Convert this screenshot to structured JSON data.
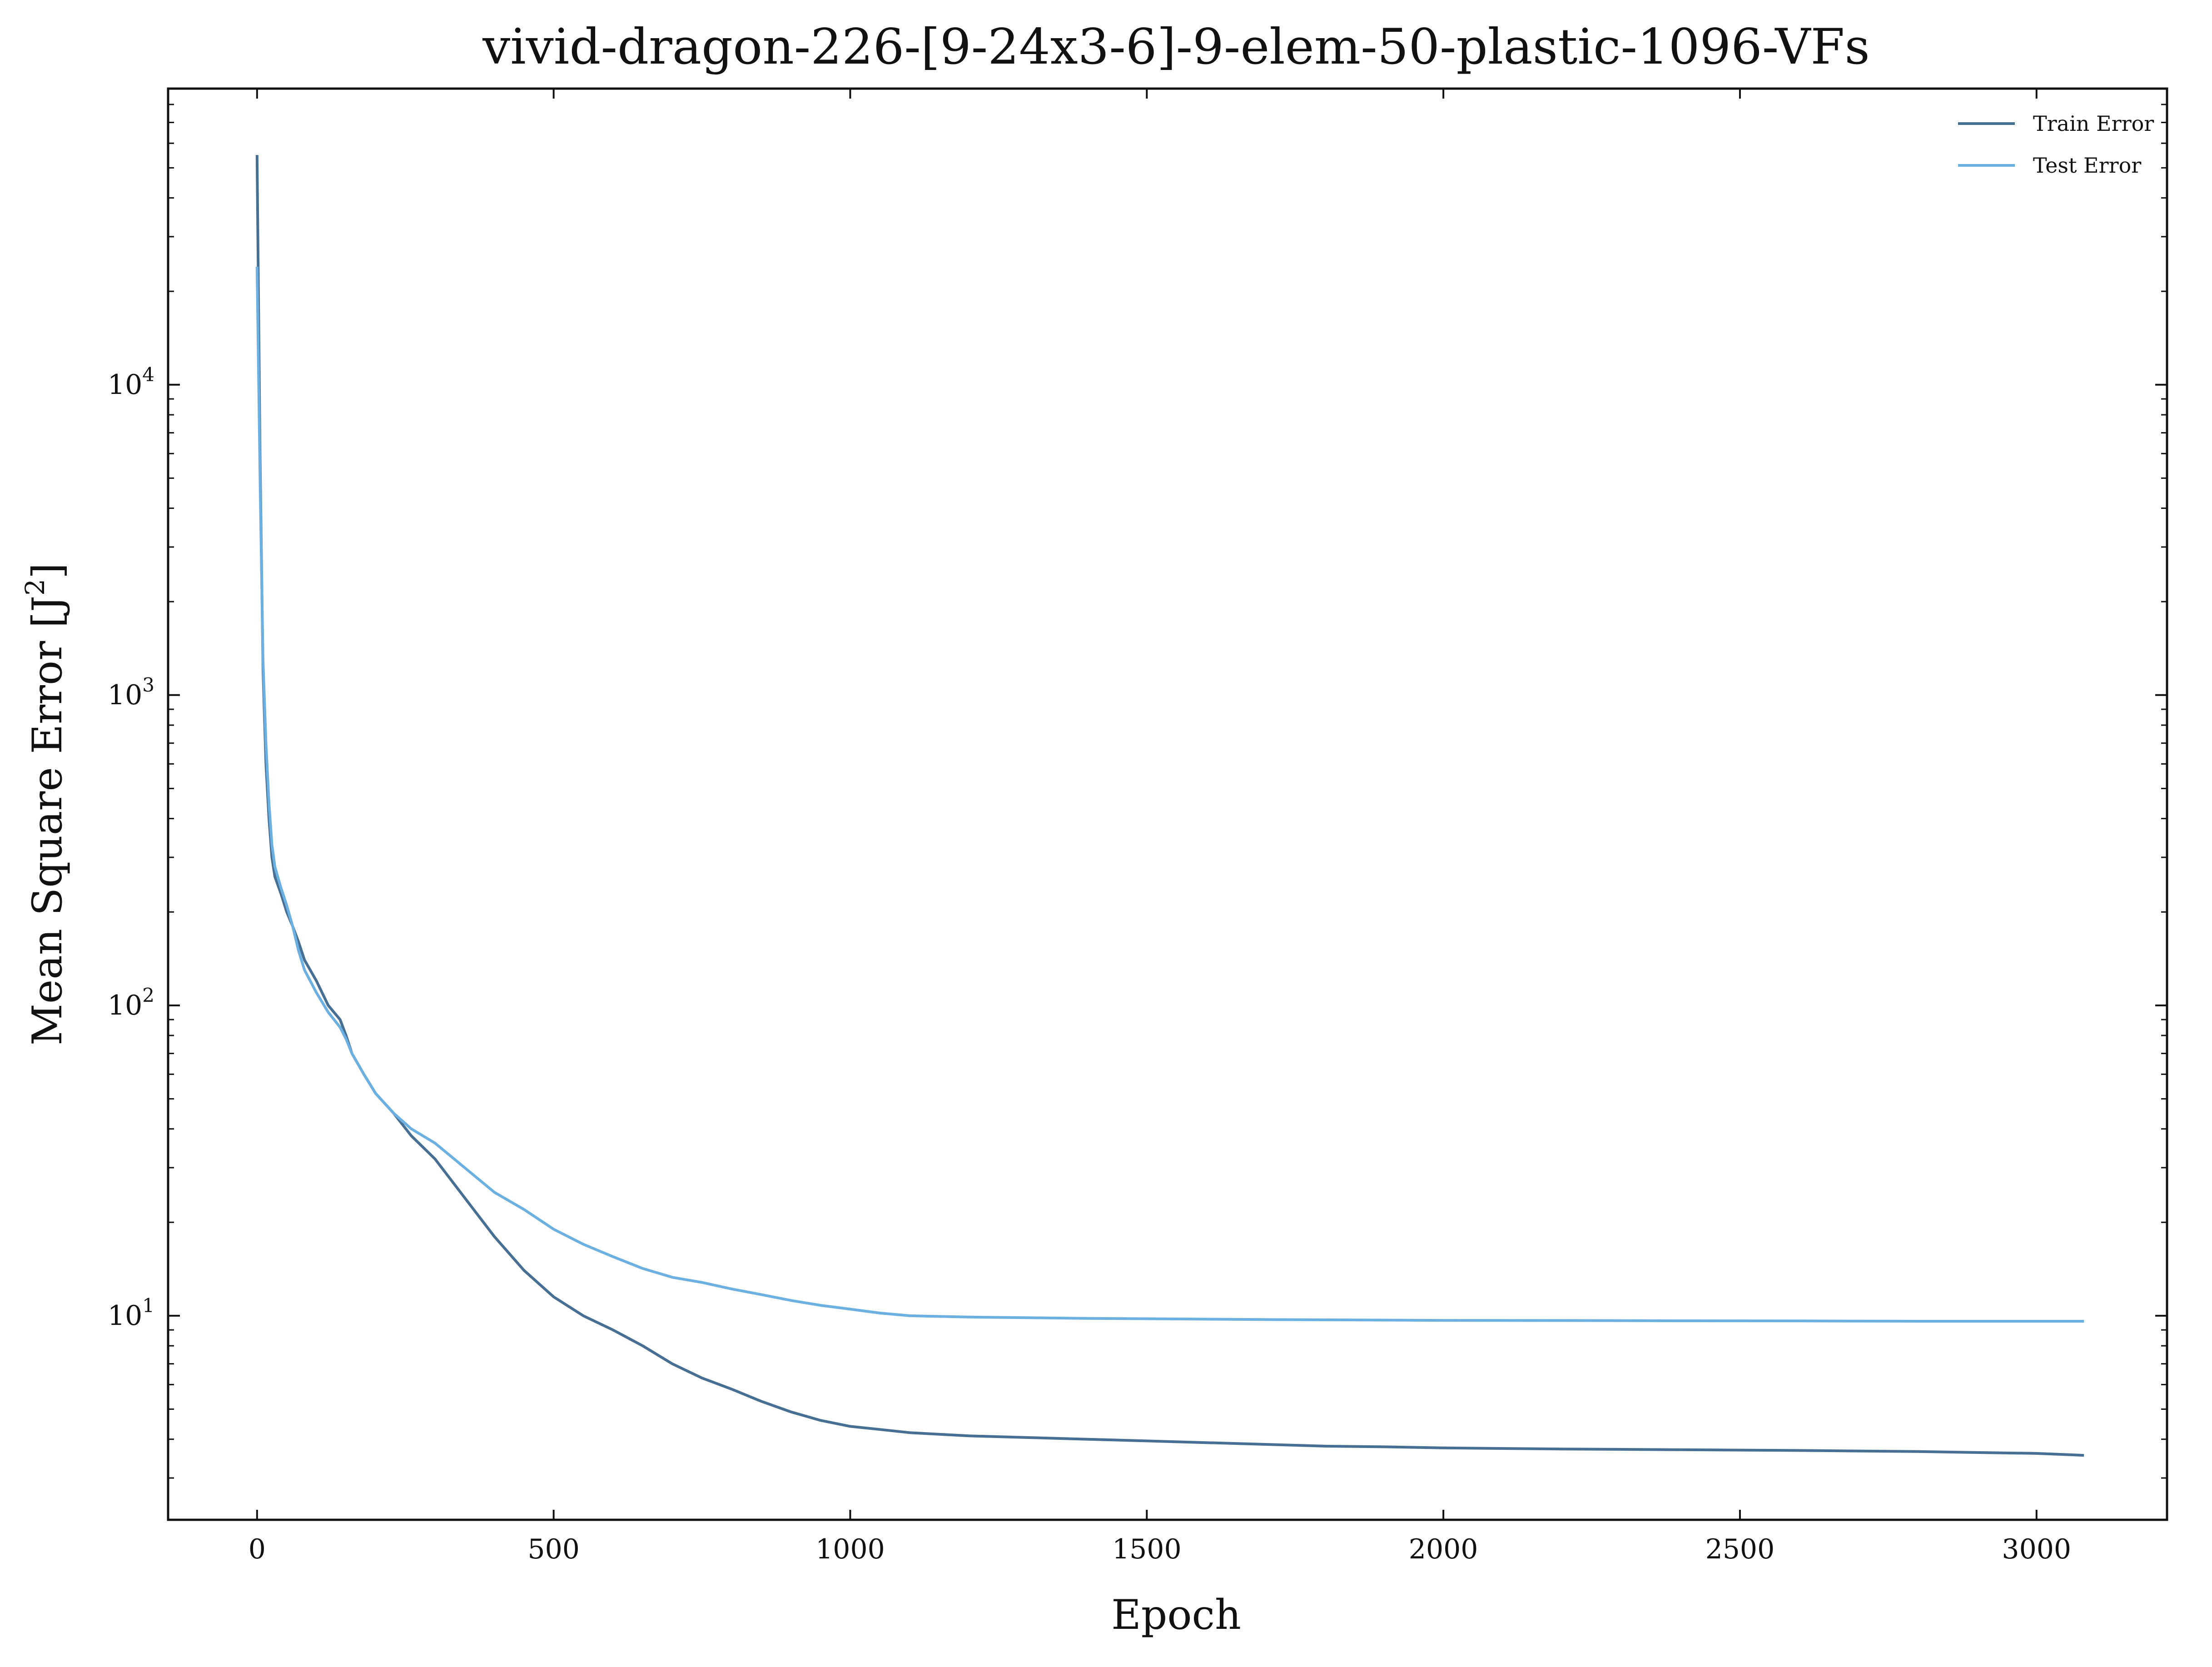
{
  "chart_data": {
    "type": "line",
    "title": "vivid-dragon-226-[9-24x3-6]-9-elem-50-plastic-1096-VFs",
    "xlabel": "Epoch",
    "ylabel_prefix": "Mean Square Error [J",
    "ylabel_sup": "2",
    "ylabel_suffix": "]",
    "yscale": "log",
    "xlim": [
      -150,
      3220
    ],
    "ylim": [
      2.2,
      90000
    ],
    "x_ticks": [
      {
        "value": 0,
        "label": "0"
      },
      {
        "value": 500,
        "label": "500"
      },
      {
        "value": 1000,
        "label": "1000"
      },
      {
        "value": 1500,
        "label": "1500"
      },
      {
        "value": 2000,
        "label": "2000"
      },
      {
        "value": 2500,
        "label": "2500"
      },
      {
        "value": 3000,
        "label": "3000"
      }
    ],
    "y_ticks": [
      {
        "value": 10,
        "base": "10",
        "exp": "1"
      },
      {
        "value": 100,
        "base": "10",
        "exp": "2"
      },
      {
        "value": 1000,
        "base": "10",
        "exp": "3"
      },
      {
        "value": 10000,
        "base": "10",
        "exp": "4"
      }
    ],
    "grid": false,
    "legend_position": "top-right",
    "series": [
      {
        "name": "Train Error",
        "color": "#476f94",
        "x": [
          0,
          5,
          10,
          15,
          20,
          25,
          30,
          40,
          50,
          60,
          70,
          80,
          100,
          120,
          140,
          150,
          160,
          180,
          200,
          230,
          260,
          300,
          350,
          400,
          450,
          500,
          550,
          600,
          650,
          700,
          750,
          800,
          850,
          900,
          950,
          1000,
          1050,
          1100,
          1200,
          1300,
          1400,
          1500,
          1600,
          1700,
          1800,
          1900,
          2000,
          2200,
          2400,
          2600,
          2800,
          3000,
          3080
        ],
        "y": [
          55000,
          6000,
          1200,
          600,
          400,
          300,
          260,
          230,
          200,
          180,
          160,
          140,
          120,
          100,
          90,
          80,
          70,
          60,
          52,
          45,
          38,
          32,
          24,
          18,
          14,
          11.5,
          10,
          9,
          8,
          7,
          6.3,
          5.8,
          5.3,
          4.9,
          4.6,
          4.4,
          4.3,
          4.2,
          4.1,
          4.05,
          4.0,
          3.95,
          3.9,
          3.85,
          3.8,
          3.78,
          3.75,
          3.72,
          3.7,
          3.68,
          3.65,
          3.6,
          3.55
        ]
      },
      {
        "name": "Test Error",
        "color": "#6cb0e2",
        "x": [
          0,
          5,
          10,
          15,
          20,
          25,
          30,
          40,
          50,
          60,
          70,
          80,
          100,
          120,
          140,
          150,
          160,
          180,
          200,
          230,
          260,
          300,
          350,
          400,
          450,
          500,
          550,
          600,
          650,
          700,
          750,
          800,
          850,
          900,
          950,
          1000,
          1050,
          1100,
          1200,
          1300,
          1400,
          1500,
          1600,
          1700,
          1800,
          1900,
          2000,
          2200,
          2400,
          2600,
          2800,
          3000,
          3080
        ],
        "y": [
          24000,
          5000,
          1300,
          700,
          450,
          330,
          280,
          240,
          210,
          180,
          150,
          130,
          110,
          95,
          85,
          78,
          70,
          60,
          52,
          45,
          40,
          36,
          30,
          25,
          22,
          19,
          17,
          15.5,
          14.2,
          13.3,
          12.8,
          12.2,
          11.7,
          11.2,
          10.8,
          10.5,
          10.2,
          10.0,
          9.9,
          9.85,
          9.8,
          9.78,
          9.75,
          9.72,
          9.7,
          9.68,
          9.66,
          9.65,
          9.63,
          9.62,
          9.6,
          9.6,
          9.6
        ]
      }
    ]
  }
}
